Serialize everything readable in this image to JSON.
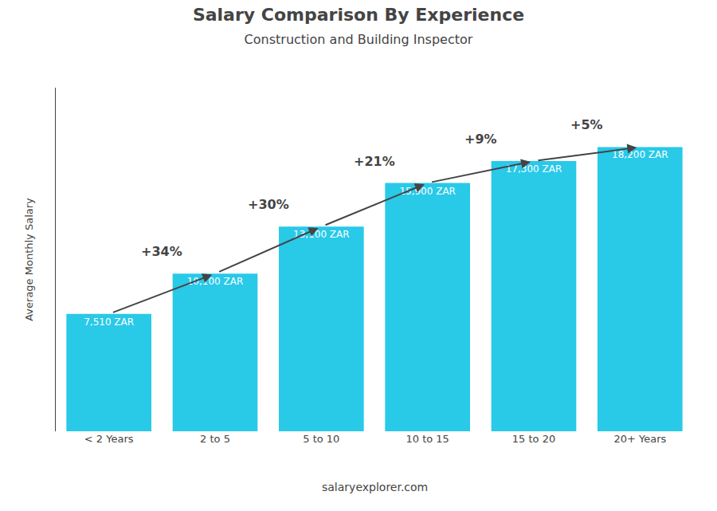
{
  "chart_data": {
    "type": "bar",
    "title": "Salary Comparison By Experience",
    "subtitle": "Construction and Building Inspector",
    "ylabel": "Average Monthly Salary",
    "categories": [
      "< 2 Years",
      "2 to 5",
      "5 to 10",
      "10 to 15",
      "15 to 20",
      "20+ Years"
    ],
    "values": [
      7510,
      10100,
      13100,
      15900,
      17300,
      18200
    ],
    "value_labels": [
      "7,510 ZAR",
      "10,100 ZAR",
      "13,100 ZAR",
      "15,900 ZAR",
      "17,300 ZAR",
      "18,200 ZAR"
    ],
    "data_labels": true,
    "color": "#29c9e8",
    "annotations": [
      "+34%",
      "+30%",
      "+21%",
      "+9%",
      "+5%"
    ],
    "watermark": "salaryexplorer.com",
    "ylim": [
      0,
      22000
    ],
    "grid": false,
    "tick_labels": "x"
  }
}
